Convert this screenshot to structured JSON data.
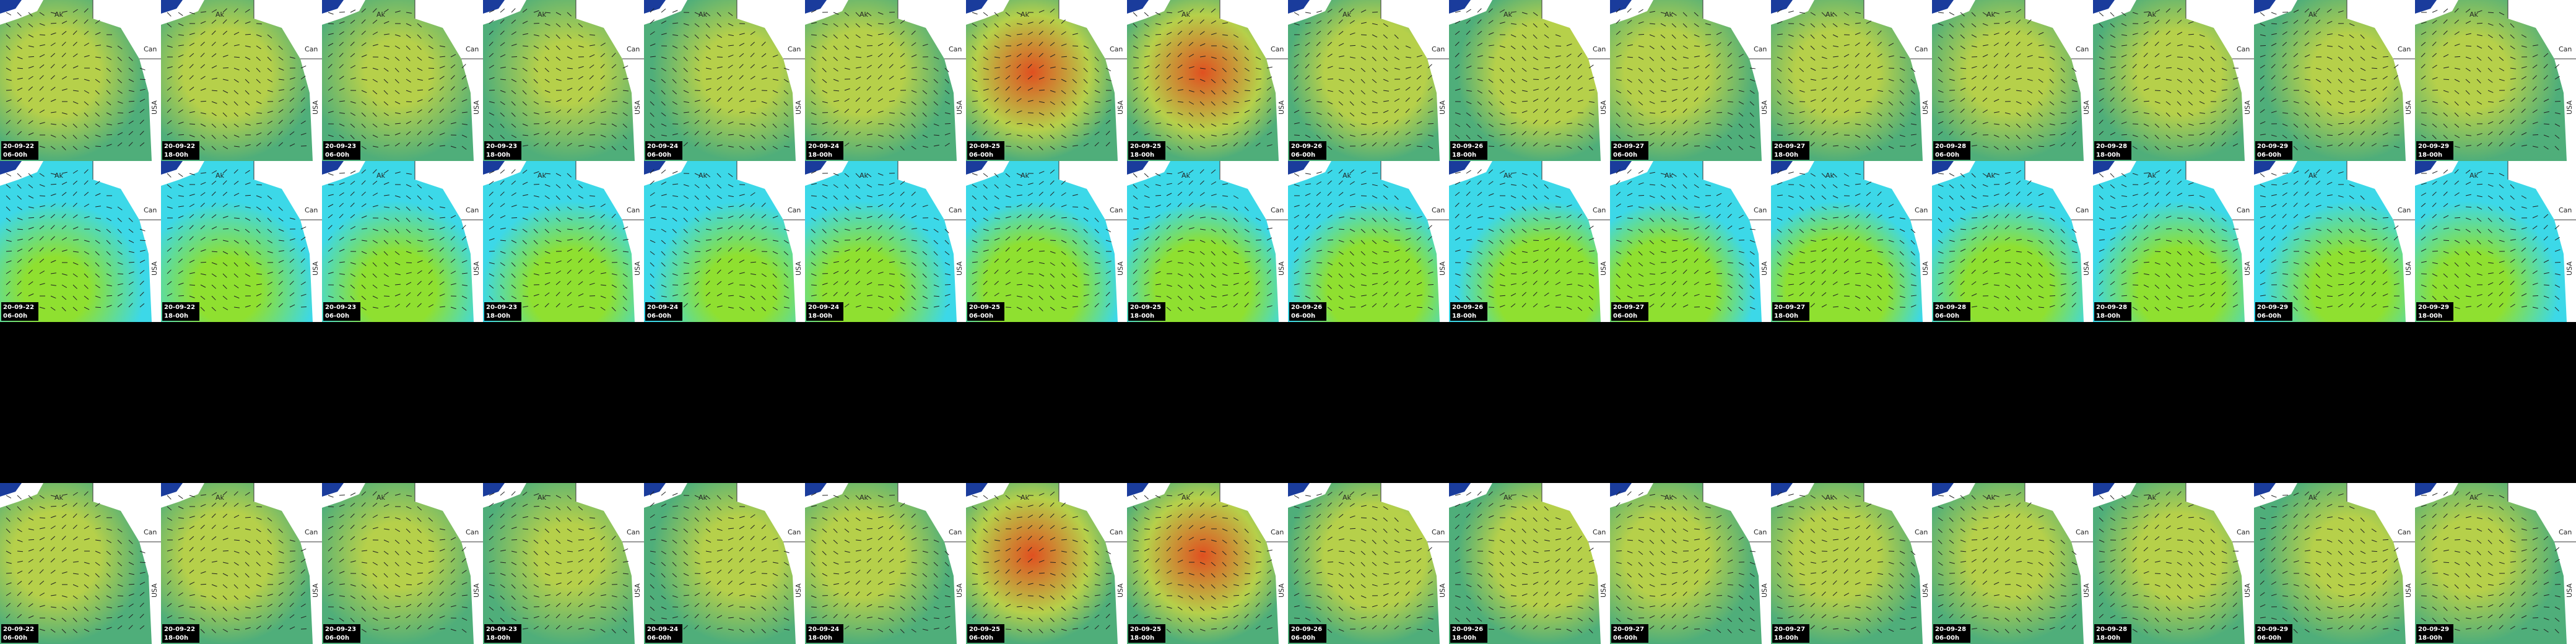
{
  "map_labels": {
    "ak": "Ak",
    "can": "Can",
    "usa": "USA"
  },
  "panels": [
    {
      "tiles": [
        {
          "date": "20-09-22",
          "time": "06-00h"
        },
        {
          "date": "20-09-22",
          "time": "18-00h"
        },
        {
          "date": "20-09-23",
          "time": "06-00h"
        },
        {
          "date": "20-09-23",
          "time": "18-00h"
        },
        {
          "date": "20-09-24",
          "time": "06-00h"
        },
        {
          "date": "20-09-24",
          "time": "18-00h"
        },
        {
          "date": "20-09-25",
          "time": "06-00h"
        },
        {
          "date": "20-09-25",
          "time": "18-00h"
        },
        {
          "date": "20-09-26",
          "time": "06-00h"
        },
        {
          "date": "20-09-26",
          "time": "18-00h"
        },
        {
          "date": "20-09-27",
          "time": "06-00h"
        },
        {
          "date": "20-09-27",
          "time": "18-00h"
        },
        {
          "date": "20-09-28",
          "time": "06-00h"
        },
        {
          "date": "20-09-28",
          "time": "18-00h"
        },
        {
          "date": "20-09-29",
          "time": "06-00h"
        },
        {
          "date": "20-09-29",
          "time": "18-00h"
        }
      ]
    },
    {
      "tiles": [
        {
          "date": "20-09-22",
          "time": "06-00h"
        },
        {
          "date": "20-09-22",
          "time": "18-00h"
        },
        {
          "date": "20-09-23",
          "time": "06-00h"
        },
        {
          "date": "20-09-23",
          "time": "18-00h"
        },
        {
          "date": "20-09-24",
          "time": "06-00h"
        },
        {
          "date": "20-09-24",
          "time": "18-00h"
        },
        {
          "date": "20-09-25",
          "time": "06-00h"
        },
        {
          "date": "20-09-25",
          "time": "18-00h"
        },
        {
          "date": "20-09-26",
          "time": "06-00h"
        },
        {
          "date": "20-09-26",
          "time": "18-00h"
        },
        {
          "date": "20-09-27",
          "time": "06-00h"
        },
        {
          "date": "20-09-27",
          "time": "18-00h"
        },
        {
          "date": "20-09-28",
          "time": "06-00h"
        },
        {
          "date": "20-09-28",
          "time": "18-00h"
        },
        {
          "date": "20-09-29",
          "time": "06-00h"
        },
        {
          "date": "20-09-29",
          "time": "18-00h"
        }
      ]
    },
    {
      "tiles": [
        {
          "date": "20-09-22",
          "time": "06-00h"
        },
        {
          "date": "20-09-22",
          "time": "18-00h"
        },
        {
          "date": "20-09-23",
          "time": "06-00h"
        },
        {
          "date": "20-09-23",
          "time": "18-00h"
        },
        {
          "date": "20-09-24",
          "time": "06-00h"
        },
        {
          "date": "20-09-24",
          "time": "18-00h"
        },
        {
          "date": "20-09-25",
          "time": "06-00h"
        },
        {
          "date": "20-09-25",
          "time": "18-00h"
        },
        {
          "date": "20-09-26",
          "time": "06-00h"
        },
        {
          "date": "20-09-26",
          "time": "18-00h"
        },
        {
          "date": "20-09-27",
          "time": "06-00h"
        },
        {
          "date": "20-09-27",
          "time": "18-00h"
        },
        {
          "date": "20-09-28",
          "time": "06-00h"
        },
        {
          "date": "20-09-28",
          "time": "18-00h"
        },
        {
          "date": "20-09-29",
          "time": "06-00h"
        },
        {
          "date": "20-09-29",
          "time": "18-00h"
        }
      ]
    }
  ]
}
